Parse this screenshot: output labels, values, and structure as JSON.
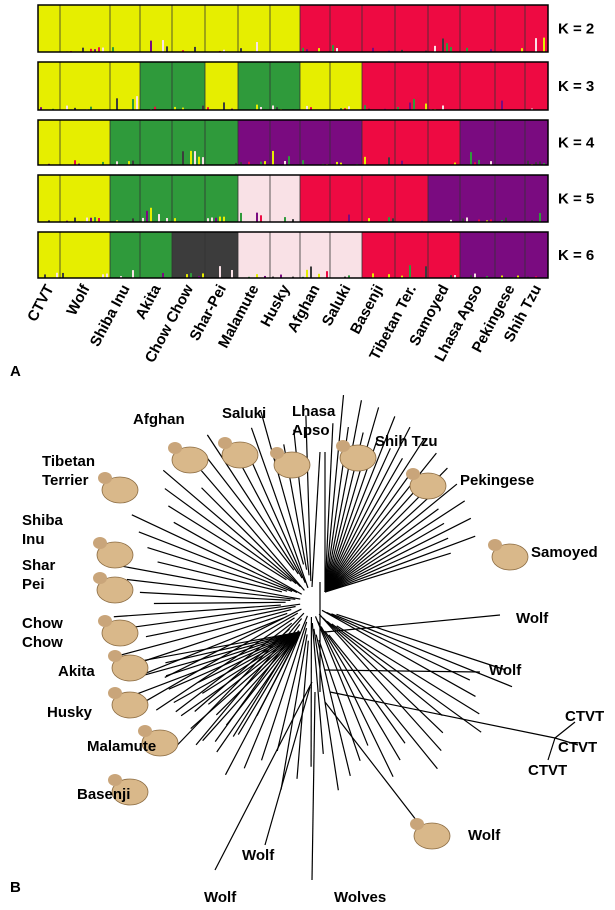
{
  "panel_a": {
    "label": "A",
    "k_labels": [
      "K = 2",
      "K = 3",
      "K = 4",
      "K = 5",
      "K = 6"
    ],
    "breeds": [
      "CTVT",
      "Wolf",
      "Shiba Inu",
      "Akita",
      "Chow Chow",
      "Shar-Pei",
      "Malamute",
      "Husky",
      "Afghan",
      "Saluki",
      "Basenji",
      "Tibetan Ter.",
      "Samoyed",
      "Lhasa Apso",
      "Pekingese",
      "Shih Tzu"
    ]
  },
  "panel_b": {
    "label": "B",
    "labels": [
      [
        "Afghan"
      ],
      [
        "Saluki"
      ],
      [
        "Lhasa",
        "Apso"
      ],
      [
        "Shih Tzu"
      ],
      [
        "Pekingese"
      ],
      [
        "Tibetan",
        "Terrier"
      ],
      [
        "Shiba",
        "Inu"
      ],
      [
        "Shar",
        "Pei"
      ],
      [
        "Chow",
        "Chow"
      ],
      [
        "Akita"
      ],
      [
        "Husky"
      ],
      [
        "Malamute"
      ],
      [
        "Basenji"
      ],
      [
        "Samoyed"
      ],
      [
        "Wolf"
      ],
      [
        "Wolf"
      ],
      [
        "CTVT"
      ],
      [
        "CTVT"
      ],
      [
        "CTVT"
      ],
      [
        "Wolf"
      ],
      [
        "Wolf"
      ],
      [
        "Wolf"
      ],
      [
        "Wolves"
      ]
    ]
  }
}
